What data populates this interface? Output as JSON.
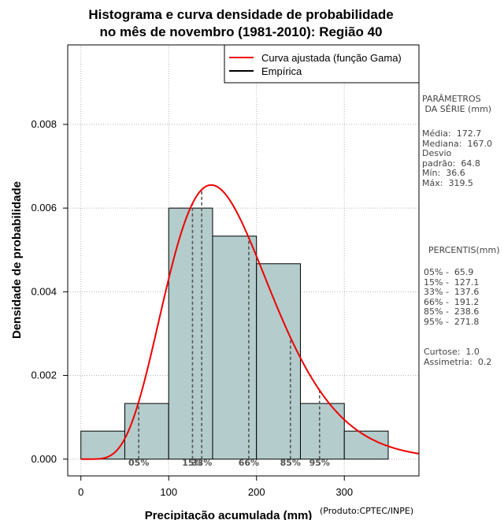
{
  "chart_data": {
    "type": "histogram",
    "title": [
      "Histograma e curva densidade de probabilidade",
      "no mês de novembro (1981-2010): Região 40"
    ],
    "xlabel": "Precipitação acumulada (mm)",
    "ylabel": "Densidade de probabilidade",
    "credit": "(Produto:CPTEC/INPE)",
    "xlim": [
      -15,
      385
    ],
    "ylim": [
      -0.0004,
      0.0099
    ],
    "x_ticks": [
      0,
      100,
      200,
      300
    ],
    "y_ticks": [
      "0.000",
      "0.002",
      "0.004",
      "0.006",
      "0.008"
    ],
    "y_tick_values": [
      0,
      0.002,
      0.004,
      0.006,
      0.008
    ],
    "grid": true,
    "bins": [
      {
        "x0": 0,
        "x1": 50,
        "density": 0.00067
      },
      {
        "x0": 50,
        "x1": 100,
        "density": 0.00133
      },
      {
        "x0": 100,
        "x1": 150,
        "density": 0.006
      },
      {
        "x0": 150,
        "x1": 200,
        "density": 0.00533
      },
      {
        "x0": 200,
        "x1": 250,
        "density": 0.00467
      },
      {
        "x0": 250,
        "x1": 300,
        "density": 0.00133
      },
      {
        "x0": 300,
        "x1": 350,
        "density": 0.00067
      }
    ],
    "bar_color": "#b4cccc",
    "curve_color": "#ee0000",
    "gamma_fit": {
      "mean": 172.7,
      "sd": 64.8
    },
    "legend": [
      {
        "label": "Curva ajustada (função Gama)",
        "color": "#ee0000"
      },
      {
        "label": "Empírica",
        "color": "#000000"
      }
    ],
    "legend_position": "top-right",
    "percentile_lines": [
      {
        "label": "05%",
        "x": 65.9
      },
      {
        "label": "15%",
        "x": 127.1
      },
      {
        "label": "33%",
        "x": 137.6
      },
      {
        "label": "66%",
        "x": 191.2
      },
      {
        "label": "85%",
        "x": 238.6
      },
      {
        "label": "95%",
        "x": 271.8
      }
    ]
  },
  "stats_panel": {
    "heading": "PARÂMETROS\n DA SÉRIE (mm)",
    "lines": "Média:  172.7\nMediana:  167.0\nDesvio\npadrão:  64.8\nMín:  36.6\nMáx:  319.5"
  },
  "percentis_panel": {
    "heading": "PERCENTIS(mm)",
    "lines": "05% -  65.9\n15% -  127.1\n33% -  137.6\n66% -  191.2\n85% -  238.6\n95% -  271.8",
    "shape": "Curtose:  1.0\nAssimetria:  0.2"
  }
}
